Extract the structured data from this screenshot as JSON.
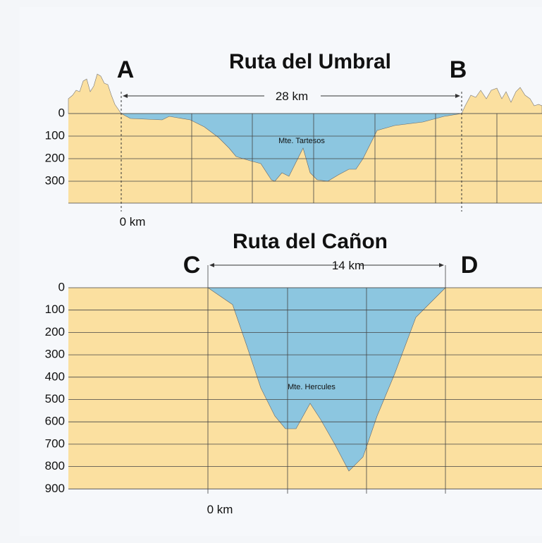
{
  "top": {
    "title": "Ruta del Umbral",
    "start": "A",
    "end": "B",
    "distance": "28 km",
    "origin": "0 km",
    "feature": "Mte. Tartesos",
    "depth_ticks": [
      0,
      100,
      200,
      300
    ]
  },
  "bottom": {
    "title": "Ruta del Cañon",
    "start": "C",
    "end": "D",
    "distance": "14 km",
    "origin": "0 km",
    "feature": "Mte. Hercules",
    "depth_ticks": [
      0,
      100,
      200,
      300,
      400,
      500,
      600,
      700,
      800,
      900
    ]
  }
}
